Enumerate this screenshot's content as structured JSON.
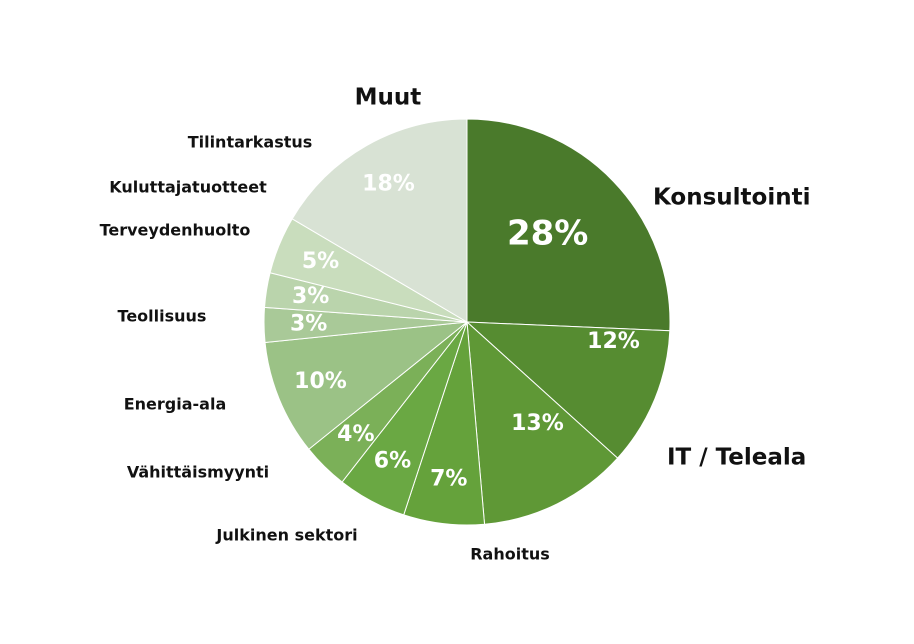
{
  "chart_data": {
    "type": "pie",
    "categories": [
      "Konsultointi",
      "IT / Teleala",
      "Rahoitus",
      "Julkinen sektori",
      "Vähittäismyynti",
      "Energia-ala",
      "Teollisuus",
      "Terveydenhuolto",
      "Kuluttajatuotteet",
      "Tilintarkastus",
      "Muut"
    ],
    "values": [
      28,
      12,
      13,
      7,
      6,
      4,
      10,
      3,
      3,
      5,
      18
    ],
    "value_labels": [
      "28%",
      "12%",
      "13%",
      "7%",
      "6%",
      "4%",
      "10%",
      "3%",
      "3%",
      "5%",
      "18%"
    ],
    "colors": [
      "#4a7a2b",
      "#568c31",
      "#5f9836",
      "#65a23b",
      "#6aa843",
      "#7bb058",
      "#9bc286",
      "#a9c998",
      "#bad4ac",
      "#c9ddbd",
      "#d8e2d4"
    ]
  }
}
